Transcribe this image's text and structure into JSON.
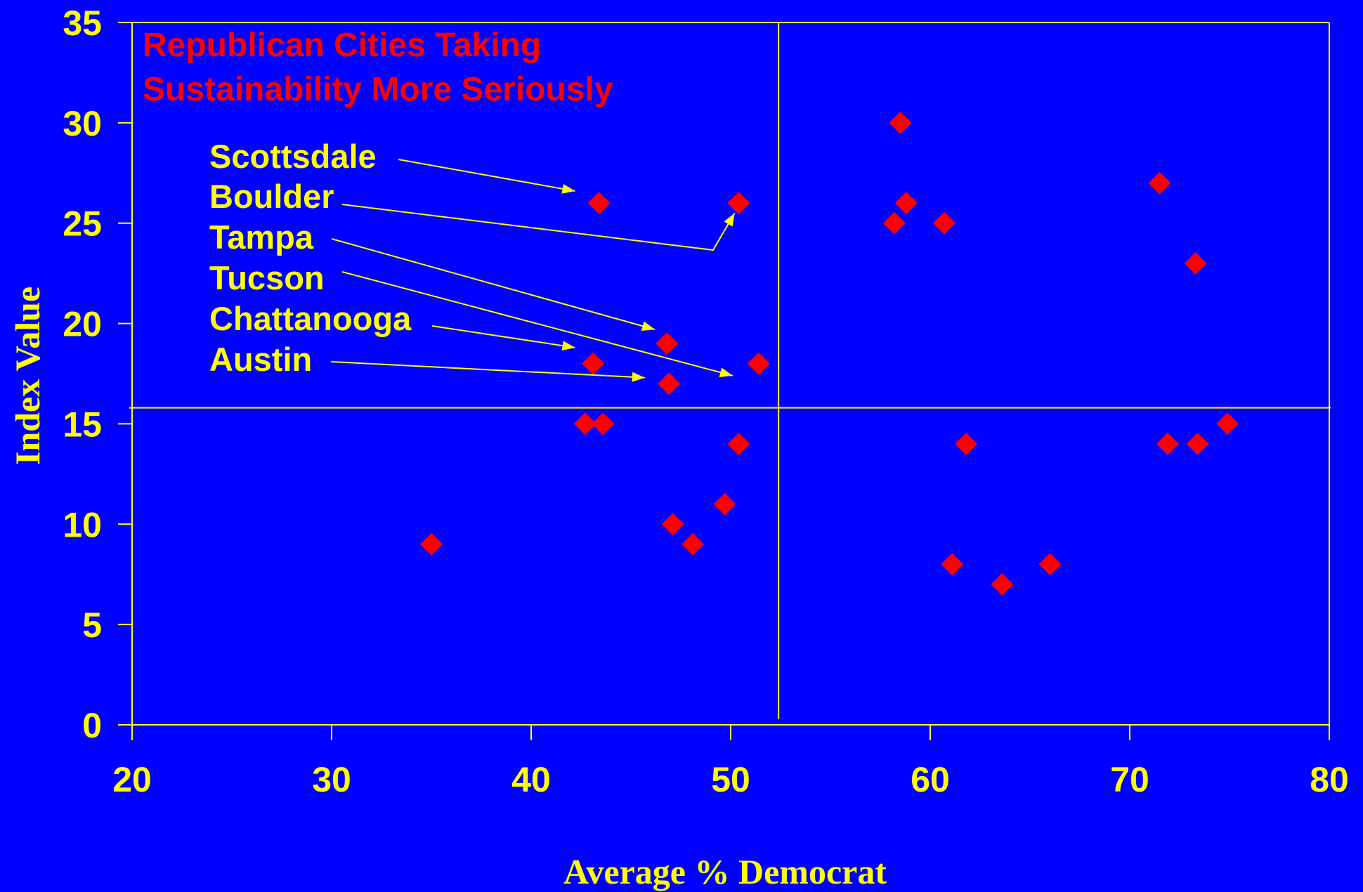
{
  "colors": {
    "background": "#0000FF",
    "axis": "#FFFF00",
    "marker": "#FF0000",
    "title": "#FF0000"
  },
  "chart_data": {
    "type": "scatter",
    "title_lines": [
      "Republican Cities Taking",
      "Sustainability  More Seriously"
    ],
    "xlabel": "Average % Democrat",
    "ylabel": "Index Value",
    "xlim": [
      20,
      80
    ],
    "ylim": [
      0,
      35
    ],
    "xticks": [
      20,
      30,
      40,
      50,
      60,
      70,
      80
    ],
    "yticks": [
      0,
      5,
      10,
      15,
      20,
      25,
      30,
      35
    ],
    "marker": "diamond",
    "grid": false,
    "reference_lines": {
      "x": 52.4,
      "y": 15.8
    },
    "points": [
      {
        "x": 35.0,
        "y": 9
      },
      {
        "x": 42.7,
        "y": 15
      },
      {
        "x": 43.6,
        "y": 15
      },
      {
        "x": 43.1,
        "y": 18
      },
      {
        "x": 43.4,
        "y": 26
      },
      {
        "x": 46.8,
        "y": 19
      },
      {
        "x": 46.9,
        "y": 17
      },
      {
        "x": 47.1,
        "y": 10
      },
      {
        "x": 48.1,
        "y": 9
      },
      {
        "x": 49.7,
        "y": 11
      },
      {
        "x": 50.4,
        "y": 14
      },
      {
        "x": 50.4,
        "y": 26
      },
      {
        "x": 51.4,
        "y": 18
      },
      {
        "x": 58.2,
        "y": 25
      },
      {
        "x": 58.5,
        "y": 30
      },
      {
        "x": 58.8,
        "y": 26
      },
      {
        "x": 60.7,
        "y": 25
      },
      {
        "x": 61.1,
        "y": 8
      },
      {
        "x": 61.8,
        "y": 14
      },
      {
        "x": 63.6,
        "y": 7
      },
      {
        "x": 66.0,
        "y": 8
      },
      {
        "x": 71.5,
        "y": 27
      },
      {
        "x": 71.9,
        "y": 14
      },
      {
        "x": 73.3,
        "y": 23
      },
      {
        "x": 73.4,
        "y": 14
      },
      {
        "x": 74.9,
        "y": 15
      }
    ],
    "annotations": [
      {
        "label": "Scottsdale",
        "arrow_to": {
          "x": 42.2,
          "y": 26.6
        }
      },
      {
        "label": "Boulder",
        "arrow_to": {
          "x": 50.2,
          "y": 25.5
        }
      },
      {
        "label": "Tampa",
        "arrow_to": {
          "x": 46.2,
          "y": 19.7
        }
      },
      {
        "label": "Tucson",
        "arrow_to": {
          "x": 50.1,
          "y": 17.4
        }
      },
      {
        "label": "Chattanooga",
        "arrow_to": {
          "x": 42.2,
          "y": 18.8
        }
      },
      {
        "label": "Austin",
        "arrow_to": {
          "x": 45.7,
          "y": 17.3
        }
      }
    ]
  }
}
